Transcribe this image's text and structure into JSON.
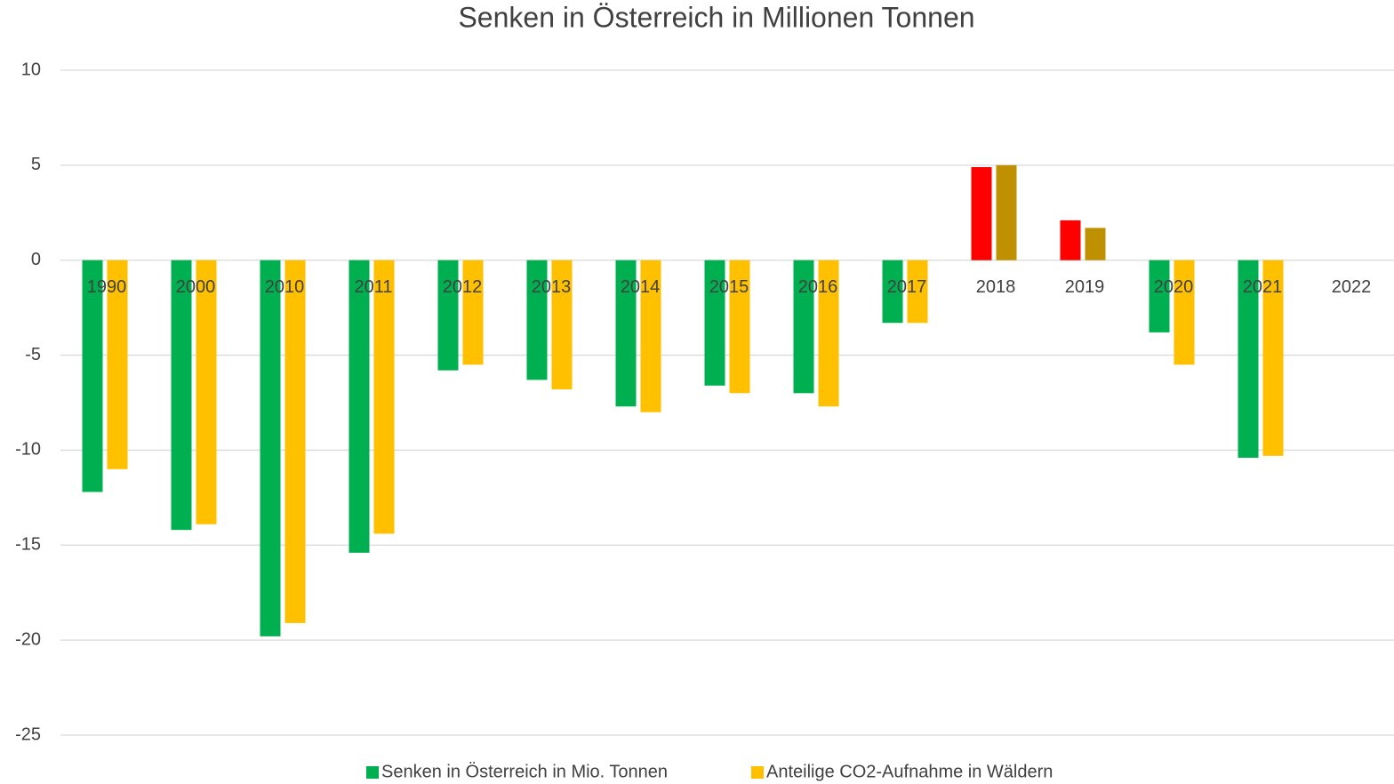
{
  "chart_data": {
    "type": "bar",
    "title": "Senken in Österreich in Millionen Tonnen",
    "categories": [
      "1990",
      "2000",
      "2010",
      "2011",
      "2012",
      "2013",
      "2014",
      "2015",
      "2016",
      "2017",
      "2018",
      "2019",
      "2020",
      "2021",
      "2022"
    ],
    "series": [
      {
        "name": "Senken in Österreich in Mio. Tonnen",
        "color": "#00b050",
        "colors": [
          "#00b050",
          "#00b050",
          "#00b050",
          "#00b050",
          "#00b050",
          "#00b050",
          "#00b050",
          "#00b050",
          "#00b050",
          "#00b050",
          "#ff0000",
          "#ff0000",
          "#00b050",
          "#00b050",
          "#00b050"
        ],
        "values": [
          -12.2,
          -14.2,
          -19.8,
          -15.4,
          -5.8,
          -6.3,
          -7.7,
          -6.6,
          -7.0,
          -3.3,
          4.9,
          2.1,
          -3.8,
          -10.4,
          null
        ]
      },
      {
        "name": "Anteilige CO2-Aufnahme in Wäldern",
        "color": "#ffc000",
        "colors": [
          "#ffc000",
          "#ffc000",
          "#ffc000",
          "#ffc000",
          "#ffc000",
          "#ffc000",
          "#ffc000",
          "#ffc000",
          "#ffc000",
          "#ffc000",
          "#bf9000",
          "#bf9000",
          "#ffc000",
          "#ffc000",
          "#ffc000"
        ],
        "values": [
          -11.0,
          -13.9,
          -19.1,
          -14.4,
          -5.5,
          -6.8,
          -8.0,
          -7.0,
          -7.7,
          -3.3,
          5.0,
          1.7,
          -5.5,
          -10.3,
          null
        ]
      }
    ],
    "ylim": [
      -25,
      10
    ],
    "yticks": [
      -25,
      -20,
      -15,
      -10,
      -5,
      0,
      5,
      10
    ],
    "grid": true,
    "legend": "bottom"
  }
}
